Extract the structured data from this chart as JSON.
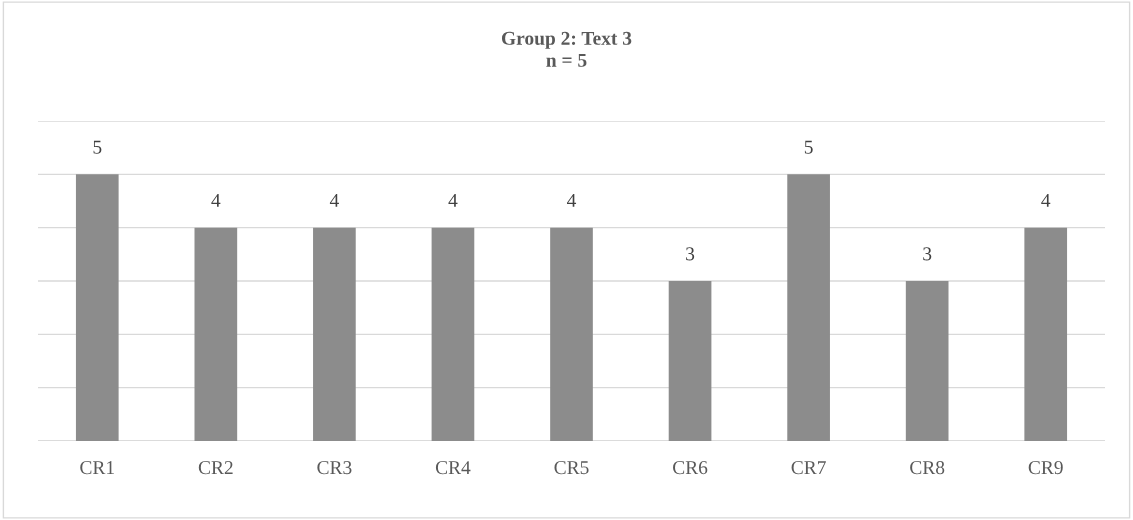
{
  "chart_data": {
    "type": "bar",
    "title": "Group 2: Text 3",
    "subtitle": "n = 5",
    "categories": [
      "CR1",
      "CR2",
      "CR3",
      "CR4",
      "CR5",
      "CR6",
      "CR7",
      "CR8",
      "CR9"
    ],
    "values": [
      5,
      4,
      4,
      4,
      4,
      3,
      5,
      3,
      4
    ],
    "color": "#8c8c8c",
    "ylim": [
      0,
      6
    ],
    "yticks": [
      {
        "value": 0,
        "label": null
      },
      {
        "value": 1,
        "label": null
      },
      {
        "value": 2,
        "label": null
      },
      {
        "value": 3,
        "label": null
      },
      {
        "value": 4,
        "label": null
      },
      {
        "value": 5,
        "label": null
      },
      {
        "value": 6,
        "label": null
      }
    ],
    "tick_labels": "x",
    "grid": "y",
    "data_labels": true,
    "legend": false
  }
}
